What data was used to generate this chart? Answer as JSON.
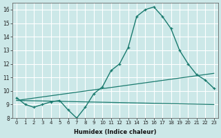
{
  "xlabel": "Humidex (Indice chaleur)",
  "bg_color": "#cce8e8",
  "grid_color": "#ffffff",
  "line_color": "#1a7a6e",
  "xlim": [
    -0.5,
    23.5
  ],
  "ylim": [
    8,
    16.5
  ],
  "yticks": [
    8,
    9,
    10,
    11,
    12,
    13,
    14,
    15,
    16
  ],
  "xticks": [
    0,
    1,
    2,
    3,
    4,
    5,
    6,
    7,
    8,
    9,
    10,
    11,
    12,
    13,
    14,
    15,
    16,
    17,
    18,
    19,
    20,
    21,
    22,
    23
  ],
  "line1_x": [
    0,
    1,
    2,
    3,
    4,
    5,
    6,
    7,
    8,
    9,
    10,
    11,
    12,
    13,
    14,
    15,
    16,
    17,
    18,
    19,
    20,
    21,
    22,
    23
  ],
  "line1_y": [
    9.5,
    9.0,
    8.8,
    9.0,
    9.2,
    9.3,
    8.6,
    8.0,
    8.8,
    9.8,
    10.3,
    11.5,
    12.0,
    13.2,
    15.5,
    16.0,
    16.2,
    15.5,
    14.6,
    13.0,
    12.0,
    11.2,
    10.8,
    10.2
  ],
  "line2_x": [
    0,
    23
  ],
  "line2_y": [
    9.3,
    9.0
  ],
  "line3_x": [
    0,
    23
  ],
  "line3_y": [
    9.3,
    11.3
  ],
  "xlabel_fontsize": 6,
  "tick_fontsize": 5,
  "ytick_fontsize": 5.5
}
